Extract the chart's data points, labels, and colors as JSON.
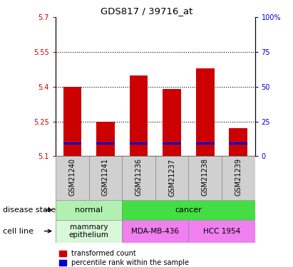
{
  "title": "GDS817 / 39716_at",
  "samples": [
    "GSM21240",
    "GSM21241",
    "GSM21236",
    "GSM21237",
    "GSM21238",
    "GSM21239"
  ],
  "transformed_count": [
    5.4,
    5.25,
    5.45,
    5.39,
    5.48,
    5.22
  ],
  "percentile_rank_y": [
    5.155,
    5.155,
    5.155,
    5.155,
    5.155,
    5.155
  ],
  "bar_base": 5.1,
  "ylim_left": [
    5.1,
    5.7
  ],
  "ylim_right": [
    0,
    100
  ],
  "yticks_left": [
    5.1,
    5.25,
    5.4,
    5.55,
    5.7
  ],
  "ytick_labels_left": [
    "5.1",
    "5.25",
    "5.4",
    "5.55",
    "5.7"
  ],
  "yticks_right": [
    0,
    25,
    50,
    75,
    100
  ],
  "ytick_labels_right": [
    "0",
    "25",
    "50",
    "75",
    "100%"
  ],
  "hlines": [
    5.25,
    5.4,
    5.55
  ],
  "red_color": "#CC0000",
  "blue_color": "#0000CC",
  "bar_width": 0.55,
  "disease_state_normal": "normal",
  "disease_state_cancer": "cancer",
  "cell_line_mammary": "mammary\nepithelium",
  "cell_line_mda": "MDA-MB-436",
  "cell_line_hcc": "HCC 1954",
  "normal_light_green": "#b0f0b0",
  "cancer_green": "#44dd44",
  "mammary_light_green": "#d8f8d8",
  "mda_pink": "#f080f0",
  "hcc_pink": "#f080f0",
  "sample_bg": "#d0d0d0",
  "legend_red_label": "transformed count",
  "legend_blue_label": "percentile rank within the sample",
  "disease_label": "disease state",
  "cell_line_label": "cell line",
  "percentile_bar_height": 0.012,
  "border_color": "#888888"
}
